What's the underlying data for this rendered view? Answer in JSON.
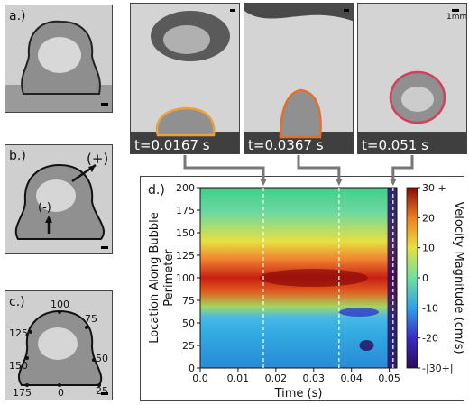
{
  "labels": {
    "a": "a.)",
    "b": "b.)",
    "c": "c.)",
    "d": "d.)"
  },
  "scale_bar": "1mm",
  "frames": [
    {
      "time": "t=0.0167 s"
    },
    {
      "time": "t=0.0367 s"
    },
    {
      "time": "t=0.051 s"
    }
  ],
  "panel_b": {
    "plus": "(+)",
    "minus": "(-)"
  },
  "panel_c": {
    "marks": [
      "100",
      "75",
      "125",
      "50",
      "150",
      "25",
      "175",
      "0"
    ]
  },
  "chart_data": {
    "type": "heatmap",
    "xlabel": "Time (s)",
    "ylabel": "Location Along Bubble Perimeter",
    "xlim": [
      0.0,
      0.052
    ],
    "ylim": [
      0,
      200
    ],
    "x_ticks": [
      "0.0",
      "0.01",
      "0.02",
      "0.03",
      "0.04",
      "0.05"
    ],
    "y_ticks": [
      "0",
      "25",
      "50",
      "75",
      "100",
      "125",
      "150",
      "175",
      "200"
    ],
    "colorbar": {
      "label": "Velocity Magnitude (cm/s)",
      "range": [
        -30,
        30
      ],
      "ticks": [
        "30 +",
        "20",
        "10",
        "0",
        "-10",
        "-20",
        "-|30+|"
      ]
    },
    "markers_x": [
      0.0167,
      0.0367,
      0.051
    ]
  }
}
